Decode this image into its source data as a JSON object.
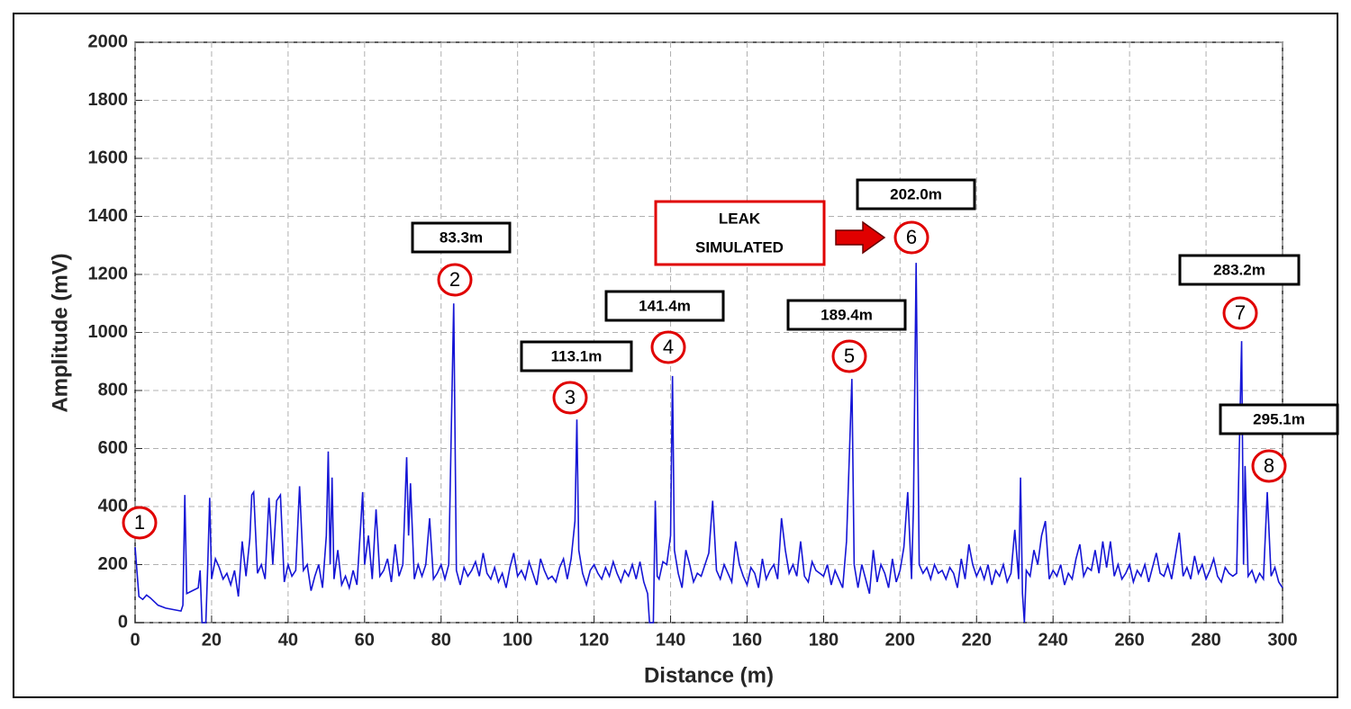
{
  "chart_data": {
    "type": "line",
    "xlabel": "Distance (m)",
    "ylabel": "Amplitude (mV)",
    "xlim": [
      0,
      300
    ],
    "ylim": [
      0,
      2000
    ],
    "xticks": [
      0,
      20,
      40,
      60,
      80,
      100,
      120,
      140,
      160,
      180,
      200,
      220,
      240,
      260,
      280,
      300
    ],
    "yticks": [
      0,
      200,
      400,
      600,
      800,
      1000,
      1200,
      1400,
      1600,
      1800,
      2000
    ],
    "grid": true,
    "color": "#1515d6",
    "x": [
      0,
      1,
      2,
      3,
      4,
      6,
      8,
      10,
      12,
      12.5,
      13,
      13.5,
      15,
      16.5,
      17,
      17.5,
      18.5,
      19,
      19.5,
      20,
      21,
      22,
      23,
      24,
      25,
      26,
      27,
      28,
      29,
      30,
      30.5,
      31,
      32,
      33,
      34,
      35,
      36,
      37,
      38,
      39,
      40,
      41,
      42,
      43,
      44,
      45,
      46,
      47,
      48,
      49,
      50,
      50.5,
      51,
      51.5,
      52,
      53,
      54,
      55,
      56,
      57,
      58,
      59,
      59.5,
      60,
      61,
      62,
      63,
      64,
      65,
      66,
      67,
      68,
      69,
      70,
      71,
      71.5,
      72,
      73,
      74,
      75,
      76,
      77,
      78,
      79,
      80,
      81,
      82,
      83.3,
      84,
      85,
      86,
      87,
      88,
      89,
      90,
      91,
      92,
      93,
      94,
      95,
      96,
      97,
      98,
      99,
      100,
      101,
      102,
      103,
      104,
      105,
      106,
      107,
      108,
      109,
      110,
      111,
      112,
      113,
      114,
      115,
      115.5,
      116,
      117,
      118,
      119,
      120,
      121,
      122,
      123,
      124,
      125,
      126,
      127,
      128,
      129,
      130,
      131,
      132,
      133,
      134,
      134.5,
      135.5,
      136,
      136.5,
      137,
      138,
      139,
      140,
      140.5,
      141,
      142,
      143,
      144,
      145,
      146,
      147,
      148,
      149,
      150,
      151,
      152,
      153,
      154,
      155,
      156,
      157,
      158,
      159,
      160,
      161,
      162,
      163,
      164,
      165,
      166,
      167,
      168,
      169,
      170,
      171,
      172,
      173,
      174,
      175,
      176,
      177,
      178,
      179,
      180,
      181,
      182,
      183,
      184,
      185,
      186,
      187.4,
      188,
      189,
      190,
      191,
      192,
      193,
      194,
      195,
      196,
      197,
      198,
      199,
      200,
      201,
      202,
      203,
      203.5,
      204.2,
      205,
      206,
      207,
      208,
      209,
      210,
      211,
      212,
      213,
      214,
      215,
      216,
      217,
      218,
      219,
      220,
      221,
      222,
      223,
      224,
      225,
      226,
      227,
      228,
      229,
      230,
      231,
      231.5,
      232,
      232.5,
      233,
      234,
      235,
      236,
      237,
      238,
      239,
      240,
      241,
      242,
      243,
      244,
      245,
      246,
      247,
      248,
      249,
      250,
      251,
      252,
      253,
      254,
      255,
      256,
      257,
      258,
      259,
      260,
      261,
      262,
      263,
      264,
      265,
      266,
      267,
      268,
      269,
      270,
      271,
      272,
      273,
      274,
      275,
      276,
      277,
      278,
      279,
      280,
      281,
      282,
      283,
      284,
      285,
      286,
      287,
      288,
      289.3,
      289.8,
      290.2,
      291,
      292,
      293,
      294,
      295,
      296,
      297,
      298,
      299,
      300
    ],
    "values": [
      260,
      90,
      80,
      95,
      85,
      60,
      50,
      45,
      40,
      60,
      440,
      100,
      110,
      120,
      180,
      0,
      0,
      200,
      430,
      150,
      220,
      190,
      150,
      170,
      130,
      180,
      90,
      280,
      160,
      290,
      440,
      450,
      170,
      200,
      150,
      430,
      200,
      420,
      440,
      140,
      200,
      160,
      180,
      470,
      180,
      200,
      110,
      160,
      200,
      120,
      300,
      590,
      200,
      500,
      150,
      250,
      130,
      160,
      120,
      180,
      130,
      340,
      450,
      200,
      300,
      150,
      390,
      160,
      180,
      220,
      140,
      270,
      160,
      200,
      570,
      300,
      480,
      150,
      200,
      160,
      200,
      360,
      150,
      170,
      200,
      150,
      200,
      1100,
      180,
      130,
      190,
      160,
      180,
      210,
      160,
      240,
      170,
      150,
      190,
      140,
      170,
      120,
      190,
      240,
      160,
      180,
      150,
      210,
      170,
      130,
      220,
      180,
      150,
      160,
      140,
      190,
      220,
      150,
      220,
      350,
      700,
      250,
      170,
      130,
      180,
      200,
      170,
      150,
      190,
      160,
      210,
      170,
      140,
      180,
      160,
      200,
      150,
      210,
      140,
      100,
      0,
      0,
      420,
      160,
      150,
      210,
      200,
      300,
      850,
      250,
      170,
      120,
      250,
      200,
      140,
      170,
      160,
      200,
      240,
      420,
      180,
      150,
      200,
      170,
      140,
      280,
      200,
      160,
      130,
      190,
      170,
      120,
      220,
      150,
      180,
      200,
      150,
      360,
      250,
      170,
      200,
      160,
      280,
      160,
      140,
      210,
      180,
      170,
      160,
      200,
      130,
      180,
      150,
      120,
      280,
      840,
      200,
      120,
      200,
      150,
      100,
      250,
      140,
      200,
      170,
      120,
      220,
      140,
      180,
      260,
      450,
      150,
      400,
      1240,
      200,
      170,
      190,
      150,
      200,
      170,
      180,
      150,
      190,
      170,
      120,
      220,
      150,
      270,
      200,
      160,
      190,
      150,
      200,
      130,
      180,
      160,
      200,
      140,
      170,
      320,
      150,
      500,
      100,
      0,
      180,
      160,
      250,
      200,
      300,
      350,
      150,
      180,
      160,
      200,
      130,
      170,
      150,
      220,
      270,
      160,
      190,
      180,
      250,
      170,
      280,
      190,
      280,
      160,
      200,
      150,
      170,
      200,
      140,
      180,
      160,
      200,
      140,
      190,
      240,
      170,
      160,
      200,
      150,
      230,
      310,
      160,
      190,
      150,
      230,
      170,
      200,
      150,
      180,
      220,
      160,
      140,
      190,
      170,
      160,
      170,
      970,
      200,
      540,
      160,
      180,
      140,
      170,
      150,
      450,
      160,
      190,
      140,
      120
    ],
    "annotations": [
      "83.3m",
      "113.1m",
      "141.4m",
      "189.4m",
      "202.0m",
      "283.2m",
      "295.1m"
    ],
    "peak_markers": [
      "1",
      "2",
      "3",
      "4",
      "5",
      "6",
      "7",
      "8"
    ],
    "callout": [
      "LEAK",
      "SIMULATED"
    ]
  }
}
